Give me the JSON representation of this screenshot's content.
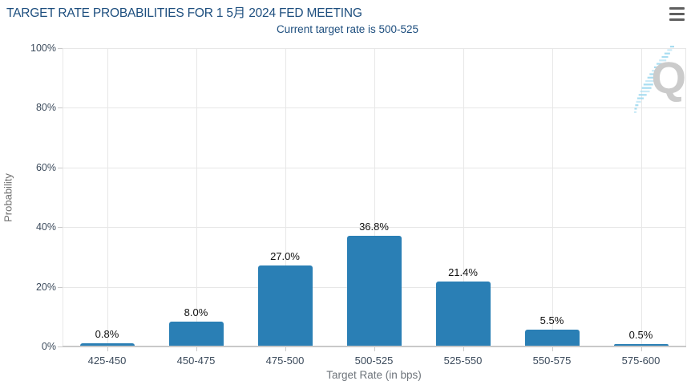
{
  "header": {
    "menu_icon": "hamburger-menu"
  },
  "watermark": {
    "letter": "Q"
  },
  "chart_data": {
    "type": "bar",
    "title": "TARGET RATE PROBABILITIES FOR 1 5月 2024 FED MEETING",
    "subtitle": "Current target rate is 500-525",
    "categories": [
      "425-450",
      "450-475",
      "475-500",
      "500-525",
      "525-550",
      "550-575",
      "575-600"
    ],
    "values": [
      0.8,
      8.0,
      27.0,
      36.8,
      21.4,
      5.5,
      0.5
    ],
    "data_labels": [
      "0.8%",
      "8.0%",
      "27.0%",
      "36.8%",
      "21.4%",
      "5.5%",
      "0.5%"
    ],
    "xlabel": "Target Rate (in bps)",
    "ylabel": "Probability",
    "ylim": [
      0,
      100
    ],
    "ytick_labels": [
      "0%",
      "20%",
      "40%",
      "60%",
      "80%",
      "100%"
    ],
    "grid": true,
    "legend": "none",
    "bar_color": "#2a7fb5",
    "title_color": "#1d4e7e",
    "gridline_color": "#e7e7e7"
  }
}
